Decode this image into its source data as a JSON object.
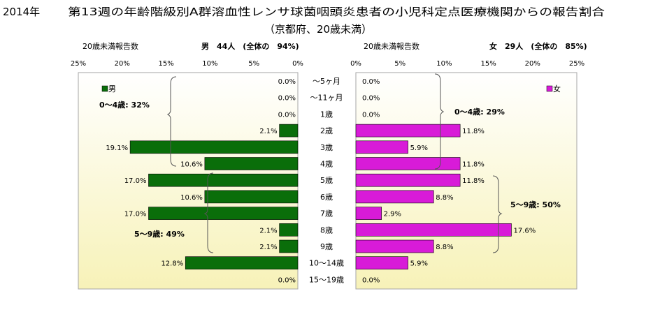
{
  "header": {
    "year": "2014年",
    "title": "第13週の年齢階級別A群溶血性レンサ球菌咽頭炎患者の小児科定点医療機関からの報告割合",
    "subtitle": "（京都府、20歳未満）"
  },
  "colors": {
    "male": "#0a6e0a",
    "female": "#d81bd8",
    "plot_bg_top": "#ffffff",
    "plot_bg_bottom": "#f7f2b8",
    "frame": "#a6a6a6"
  },
  "chart_data": [
    {
      "type": "bar",
      "side": "left",
      "header_left": "20歳未満報告数",
      "header_right": "男　44人　(全体の　94%)",
      "legend": "男",
      "group_label_a": "0～4歳: 32%",
      "group_label_b": "5～9歳: 49%",
      "xlim": [
        0,
        25
      ],
      "x_ticks": [
        "25%",
        "20%",
        "15%",
        "10%",
        "5%",
        "0%"
      ],
      "categories": [
        "～5ヶ月",
        "～11ヶ月",
        "1歳",
        "2歳",
        "3歳",
        "4歳",
        "5歳",
        "6歳",
        "7歳",
        "8歳",
        "9歳",
        "10～14歳",
        "15～19歳"
      ],
      "values": [
        0.0,
        0.0,
        0.0,
        2.1,
        19.1,
        10.6,
        17.0,
        10.6,
        17.0,
        2.1,
        2.1,
        12.8,
        0.0
      ],
      "value_labels": [
        "0.0%",
        "0.0%",
        "0.0%",
        "2.1%",
        "19.1%",
        "10.6%",
        "17.0%",
        "10.6%",
        "17.0%",
        "2.1%",
        "2.1%",
        "12.8%",
        "0.0%"
      ]
    },
    {
      "type": "bar",
      "side": "right",
      "header_left": "20歳未満報告数",
      "header_right": "女　29人　(全体の　85%)",
      "legend": "女",
      "group_label_a": "0～4歳: 29%",
      "group_label_b": "5～9歳: 50%",
      "xlim": [
        0,
        25
      ],
      "x_ticks": [
        "0%",
        "5%",
        "10%",
        "15%",
        "20%",
        "25%"
      ],
      "categories": [
        "～5ヶ月",
        "～11ヶ月",
        "1歳",
        "2歳",
        "3歳",
        "4歳",
        "5歳",
        "6歳",
        "7歳",
        "8歳",
        "9歳",
        "10～14歳",
        "15～19歳"
      ],
      "values": [
        0.0,
        0.0,
        0.0,
        11.8,
        5.9,
        11.8,
        11.8,
        8.8,
        2.9,
        17.6,
        8.8,
        5.9,
        0.0
      ],
      "value_labels": [
        "0.0%",
        "0.0%",
        "0.0%",
        "11.8%",
        "5.9%",
        "11.8%",
        "11.8%",
        "8.8%",
        "2.9%",
        "17.6%",
        "8.8%",
        "5.9%",
        "0.0%"
      ]
    }
  ]
}
